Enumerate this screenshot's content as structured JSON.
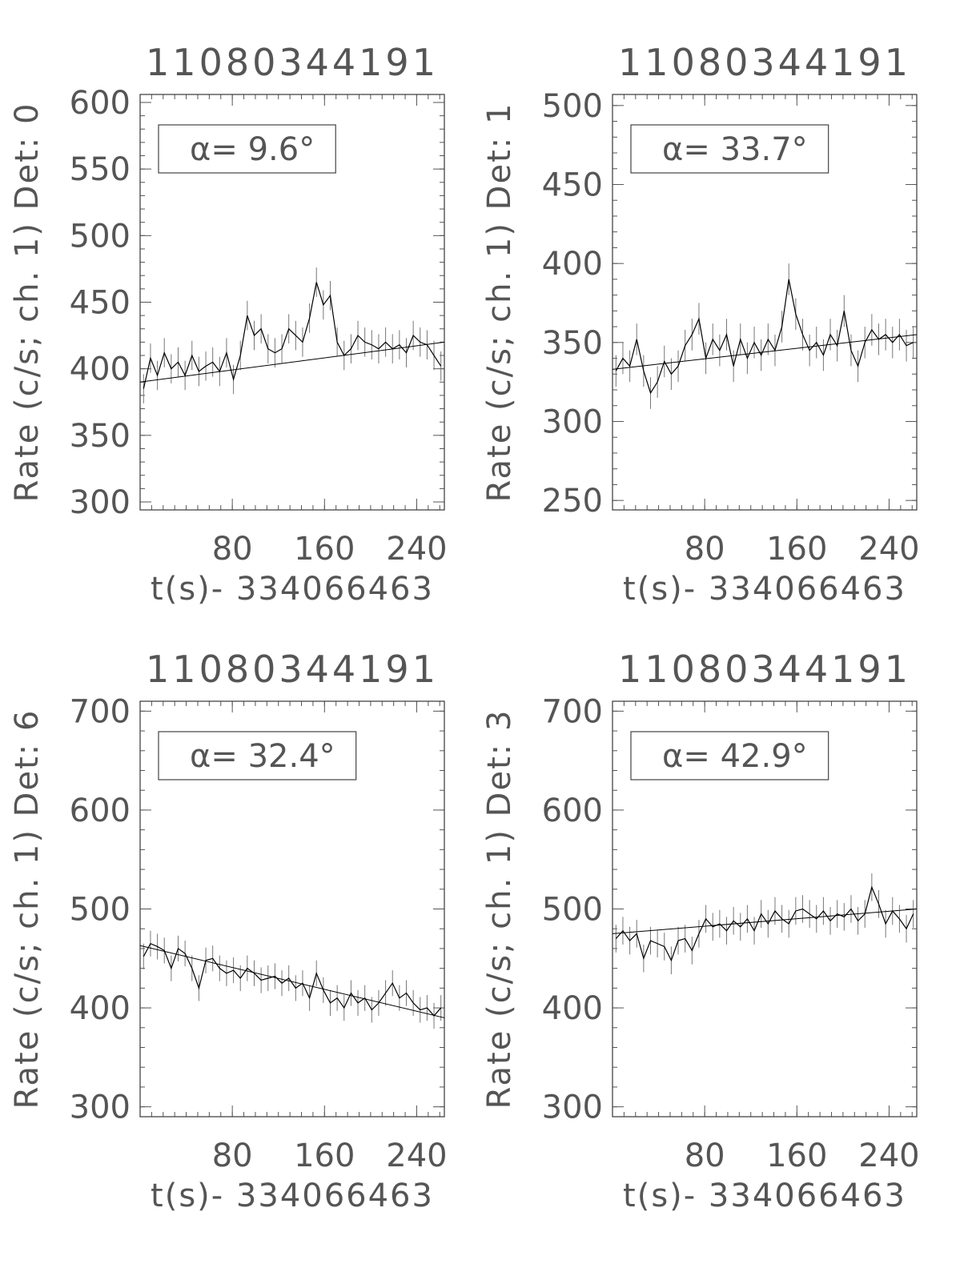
{
  "chart_data": [
    {
      "type": "line",
      "title": "11080344191",
      "xlabel": "t(s)- 334066463",
      "ylabel": "Rate (c/s; ch. 1) Det: 0",
      "annotation": "α= 9.6°",
      "color": "#000000",
      "xlim": [
        0,
        264
      ],
      "ylim": [
        294,
        606
      ],
      "xticks": [
        80,
        160,
        240
      ],
      "yticks": [
        300,
        350,
        400,
        450,
        500,
        550,
        600
      ],
      "xminor": 10,
      "yminor": 10,
      "x": [
        3,
        9,
        15,
        21,
        27,
        33,
        39,
        45,
        51,
        57,
        63,
        69,
        75,
        81,
        87,
        93,
        99,
        105,
        111,
        117,
        123,
        129,
        135,
        141,
        147,
        153,
        159,
        165,
        171,
        177,
        183,
        189,
        195,
        201,
        207,
        213,
        219,
        225,
        231,
        237,
        243,
        249,
        255,
        261
      ],
      "values": [
        385,
        408,
        395,
        412,
        400,
        405,
        395,
        410,
        398,
        402,
        405,
        398,
        412,
        392,
        410,
        440,
        425,
        430,
        415,
        412,
        415,
        430,
        425,
        420,
        438,
        465,
        448,
        455,
        420,
        410,
        415,
        425,
        420,
        418,
        415,
        420,
        415,
        418,
        412,
        425,
        420,
        418,
        410,
        402
      ],
      "errors": [
        11,
        11,
        11,
        11,
        11,
        11,
        11,
        11,
        11,
        11,
        11,
        11,
        11,
        11,
        11,
        11,
        11,
        11,
        11,
        11,
        11,
        11,
        11,
        11,
        11,
        11,
        11,
        11,
        11,
        11,
        11,
        11,
        11,
        11,
        11,
        11,
        11,
        11,
        11,
        11,
        11,
        11,
        11,
        11
      ],
      "fit_x": [
        0,
        264
      ],
      "fit_values": [
        390,
        420
      ]
    },
    {
      "type": "line",
      "title": "11080344191",
      "xlabel": "t(s)- 334066463",
      "ylabel": "Rate (c/s; ch. 1) Det: 1",
      "annotation": "α= 33.7°",
      "color": "#000000",
      "xlim": [
        0,
        264
      ],
      "ylim": [
        244,
        507
      ],
      "xticks": [
        80,
        160,
        240
      ],
      "yticks": [
        250,
        300,
        350,
        400,
        450,
        500
      ],
      "xminor": 10,
      "yminor": 10,
      "x": [
        3,
        9,
        15,
        21,
        27,
        33,
        39,
        45,
        51,
        57,
        63,
        69,
        75,
        81,
        87,
        93,
        99,
        105,
        111,
        117,
        123,
        129,
        135,
        141,
        147,
        153,
        159,
        165,
        171,
        177,
        183,
        189,
        195,
        201,
        207,
        213,
        219,
        225,
        231,
        237,
        243,
        249,
        255,
        261
      ],
      "values": [
        332,
        340,
        335,
        352,
        332,
        318,
        325,
        338,
        330,
        335,
        348,
        355,
        365,
        340,
        352,
        345,
        355,
        335,
        352,
        340,
        350,
        342,
        352,
        345,
        360,
        390,
        368,
        355,
        345,
        350,
        342,
        355,
        348,
        370,
        345,
        335,
        350,
        358,
        352,
        355,
        350,
        355,
        348,
        350
      ],
      "errors": [
        10,
        10,
        10,
        10,
        10,
        10,
        10,
        10,
        10,
        10,
        10,
        10,
        10,
        10,
        10,
        10,
        10,
        10,
        10,
        10,
        10,
        10,
        10,
        10,
        10,
        10,
        10,
        10,
        10,
        10,
        10,
        10,
        10,
        10,
        10,
        10,
        10,
        10,
        10,
        10,
        10,
        10,
        10,
        10
      ],
      "fit_x": [
        0,
        264
      ],
      "fit_values": [
        333,
        355
      ]
    },
    {
      "type": "line",
      "title": "11080344191",
      "xlabel": "t(s)- 334066463",
      "ylabel": "Rate (c/s; ch. 1) Det: 6",
      "annotation": "α= 32.4°",
      "color": "#000000",
      "xlim": [
        0,
        264
      ],
      "ylim": [
        290,
        710
      ],
      "xticks": [
        80,
        160,
        240
      ],
      "yticks": [
        300,
        400,
        500,
        600,
        700
      ],
      "xminor": 10,
      "yminor": 20,
      "x": [
        3,
        9,
        15,
        21,
        27,
        33,
        39,
        45,
        51,
        57,
        63,
        69,
        75,
        81,
        87,
        93,
        99,
        105,
        111,
        117,
        123,
        129,
        135,
        141,
        147,
        153,
        159,
        165,
        171,
        177,
        183,
        189,
        195,
        201,
        207,
        213,
        219,
        225,
        231,
        237,
        243,
        249,
        255,
        261
      ],
      "values": [
        452,
        465,
        462,
        458,
        440,
        460,
        455,
        440,
        420,
        448,
        450,
        440,
        435,
        438,
        430,
        440,
        435,
        428,
        430,
        432,
        425,
        430,
        420,
        425,
        410,
        435,
        418,
        405,
        410,
        400,
        415,
        405,
        410,
        398,
        405,
        415,
        425,
        410,
        415,
        405,
        398,
        400,
        392,
        400
      ],
      "errors": [
        13,
        13,
        13,
        13,
        13,
        13,
        13,
        13,
        13,
        13,
        13,
        13,
        13,
        13,
        13,
        13,
        13,
        13,
        13,
        13,
        13,
        13,
        13,
        13,
        13,
        13,
        13,
        13,
        13,
        13,
        13,
        13,
        13,
        13,
        13,
        13,
        13,
        13,
        13,
        13,
        13,
        13,
        13,
        13
      ],
      "fit_x": [
        0,
        264
      ],
      "fit_values": [
        463,
        390
      ]
    },
    {
      "type": "line",
      "title": "11080344191",
      "xlabel": "t(s)- 334066463",
      "ylabel": "Rate (c/s; ch. 1) Det: 3",
      "annotation": "α= 42.9°",
      "color": "#000000",
      "xlim": [
        0,
        264
      ],
      "ylim": [
        290,
        710
      ],
      "xticks": [
        80,
        160,
        240
      ],
      "yticks": [
        300,
        400,
        500,
        600,
        700
      ],
      "xminor": 10,
      "yminor": 20,
      "x": [
        3,
        9,
        15,
        21,
        27,
        33,
        39,
        45,
        51,
        57,
        63,
        69,
        75,
        81,
        87,
        93,
        99,
        105,
        111,
        117,
        123,
        129,
        135,
        141,
        147,
        153,
        159,
        165,
        171,
        177,
        183,
        189,
        195,
        201,
        207,
        213,
        219,
        225,
        231,
        237,
        243,
        249,
        255,
        261
      ],
      "values": [
        470,
        478,
        468,
        475,
        450,
        468,
        465,
        462,
        448,
        468,
        470,
        458,
        475,
        490,
        482,
        485,
        478,
        488,
        482,
        490,
        478,
        495,
        485,
        498,
        490,
        485,
        498,
        500,
        495,
        490,
        498,
        488,
        495,
        492,
        500,
        488,
        495,
        522,
        505,
        485,
        498,
        490,
        480,
        495
      ],
      "errors": [
        14,
        14,
        14,
        14,
        14,
        14,
        14,
        14,
        14,
        14,
        14,
        14,
        14,
        14,
        14,
        14,
        14,
        14,
        14,
        14,
        14,
        14,
        14,
        14,
        14,
        14,
        14,
        14,
        14,
        14,
        14,
        14,
        14,
        14,
        14,
        14,
        14,
        14,
        14,
        14,
        14,
        14,
        14,
        14
      ],
      "fit_x": [
        0,
        264
      ],
      "fit_values": [
        475,
        500
      ]
    }
  ]
}
